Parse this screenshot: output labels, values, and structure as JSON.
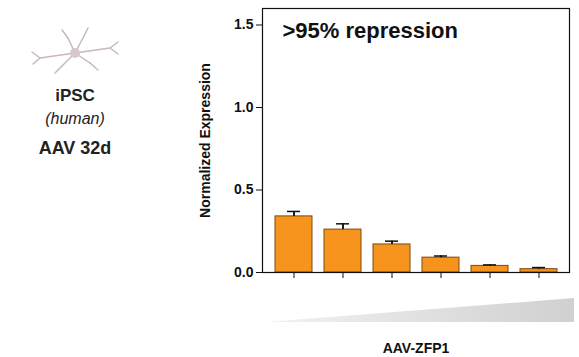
{
  "chart_data": {
    "type": "bar",
    "title": ">95% repression",
    "annotations": [
      "iPSC",
      "(human)",
      "AAV 32d"
    ],
    "x_label": "AAV-ZFP1",
    "y_label": "Normalized Expression",
    "categories": [
      null,
      null,
      null,
      null,
      null,
      null
    ],
    "values": [
      0.34,
      0.26,
      0.17,
      0.09,
      0.04,
      0.02
    ],
    "errors": [
      0.03,
      0.035,
      0.02,
      0.01,
      0.006,
      0.01
    ],
    "color": "#f7941d",
    "ylim": [
      0,
      1.6
    ],
    "yticks": [
      {
        "value": 0,
        "label": "0.0"
      },
      0.5,
      {
        "value": 1,
        "label": "1.0"
      },
      1.5
    ],
    "grid": false
  }
}
